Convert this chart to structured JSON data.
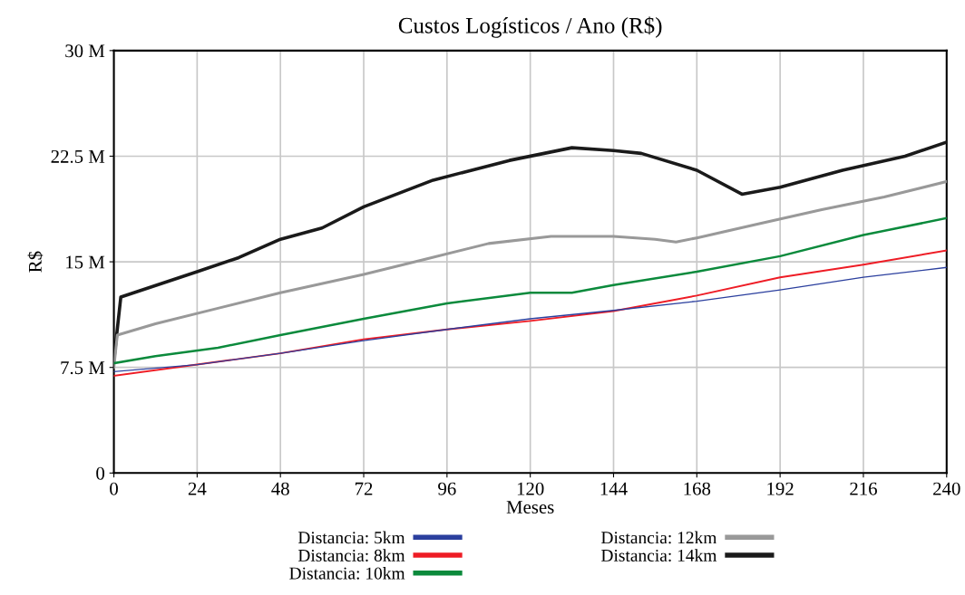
{
  "chart_data": {
    "type": "line",
    "title": "Custos Logísticos / Ano (R$)",
    "xlabel": "Meses",
    "ylabel": "R$",
    "xlim": [
      0,
      240
    ],
    "xticks": [
      0,
      24,
      48,
      72,
      96,
      120,
      144,
      168,
      192,
      216,
      240
    ],
    "ylim": [
      0,
      30
    ],
    "yticks": [
      {
        "value": 0,
        "label": "0"
      },
      {
        "value": 7.5,
        "label": "7.5 M"
      },
      {
        "value": 15,
        "label": "15 M"
      },
      {
        "value": 22.5,
        "label": "22.5 M"
      },
      {
        "value": 30,
        "label": "30 M"
      }
    ],
    "grid": true,
    "legend": "bottom",
    "line_style": "solid",
    "series": [
      {
        "name": "Distancia: 5km",
        "color": "#2b3f9e",
        "x": [
          0,
          24,
          48,
          72,
          96,
          120,
          144,
          168,
          192,
          216,
          240
        ],
        "values": [
          7.2,
          7.7,
          8.5,
          9.4,
          10.2,
          10.95,
          11.55,
          12.2,
          13.0,
          13.9,
          14.6
        ]
      },
      {
        "name": "Distancia: 8km",
        "color": "#ee1c25",
        "x": [
          0,
          24,
          48,
          72,
          96,
          120,
          144,
          168,
          192,
          216,
          240
        ],
        "values": [
          6.9,
          7.7,
          8.5,
          9.5,
          10.2,
          10.8,
          11.5,
          12.6,
          13.9,
          14.8,
          15.8
        ]
      },
      {
        "name": "Distancia: 10km",
        "color": "#0b8a3c",
        "x": [
          0,
          12,
          30,
          48,
          72,
          96,
          120,
          132,
          144,
          168,
          192,
          216,
          240
        ],
        "values": [
          7.8,
          8.3,
          8.9,
          9.8,
          10.95,
          12.05,
          12.8,
          12.8,
          13.35,
          14.3,
          15.4,
          16.9,
          18.1
        ]
      },
      {
        "name": "Distancia: 12km",
        "color": "#999999",
        "x": [
          0,
          1,
          12,
          30,
          48,
          72,
          90,
          108,
          126,
          144,
          156,
          162,
          168,
          186,
          204,
          222,
          240
        ],
        "values": [
          7.5,
          9.8,
          10.6,
          11.7,
          12.8,
          14.1,
          15.2,
          16.3,
          16.8,
          16.8,
          16.6,
          16.4,
          16.7,
          17.7,
          18.7,
          19.6,
          20.7
        ]
      },
      {
        "name": "Distancia: 14km",
        "color": "#1a1a1a",
        "x": [
          0,
          2,
          24,
          36,
          48,
          60,
          72,
          92,
          114,
          132,
          144,
          152,
          168,
          181,
          192,
          210,
          228,
          240
        ],
        "values": [
          8.0,
          12.5,
          14.3,
          15.3,
          16.6,
          17.4,
          18.9,
          20.8,
          22.2,
          23.1,
          22.9,
          22.7,
          21.5,
          19.8,
          20.3,
          21.5,
          22.5,
          23.5
        ]
      }
    ]
  }
}
